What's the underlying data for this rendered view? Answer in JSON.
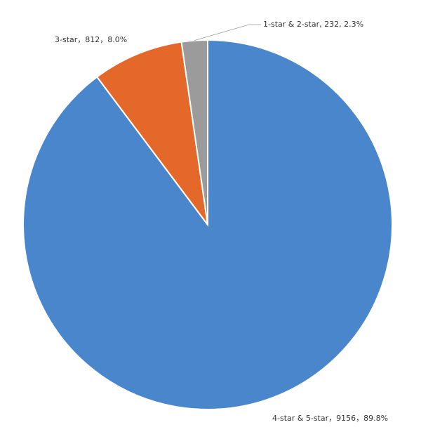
{
  "chart_data": {
    "type": "pie",
    "categories": [
      "4-star & 5-star",
      "3-star",
      "1-star & 2-star"
    ],
    "values": [
      9156,
      812,
      232
    ],
    "value_labels": [
      "4-star & 5-star，9156，89.8%",
      "3-star，812，8.0%",
      "1-star & 2-star, 232, 2.3%"
    ],
    "colors": [
      "#4a86cb",
      "#e4682a",
      "#9b9b9b"
    ]
  }
}
